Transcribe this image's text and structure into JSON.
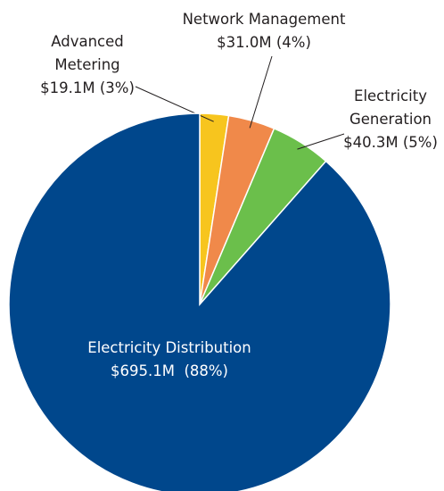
{
  "chart_data": {
    "type": "pie",
    "categories": [
      "Advanced Metering",
      "Network Management",
      "Electricity Generation",
      "Electricity Distribution"
    ],
    "values": [
      19.1,
      31.0,
      40.3,
      695.1
    ],
    "value_labels": [
      "$19.1M (3%)",
      "$31.0M (4%)",
      "$40.3M (5%)",
      "$695.1M  (88%)"
    ],
    "colors": [
      "#f7c51e",
      "#f0894a",
      "#6bbf4b",
      "#00478c"
    ]
  }
}
